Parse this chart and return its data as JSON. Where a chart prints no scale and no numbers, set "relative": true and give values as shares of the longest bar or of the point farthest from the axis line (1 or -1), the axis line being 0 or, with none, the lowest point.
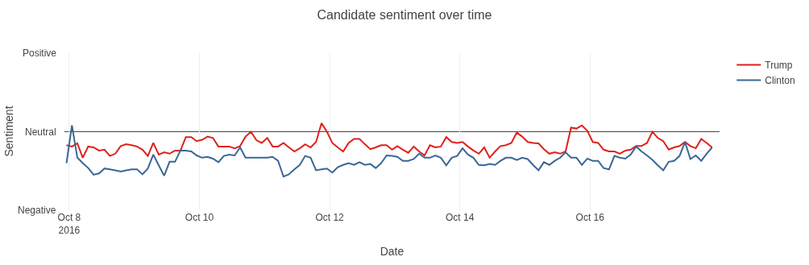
{
  "chart_data": {
    "type": "line",
    "title": "Candidate sentiment over time",
    "xlabel": "Date",
    "ylabel": "Sentiment",
    "x": [
      "2016-10-07T23:00",
      "2016-10-08T01:00",
      "2016-10-08T03:00",
      "2016-10-08T05:00",
      "2016-10-08T07:00",
      "2016-10-08T09:00",
      "2016-10-08T11:00",
      "2016-10-08T13:00",
      "2016-10-08T15:00",
      "2016-10-08T17:00",
      "2016-10-08T19:00",
      "2016-10-08T21:00",
      "2016-10-08T23:00",
      "2016-10-09T01:00",
      "2016-10-09T03:00",
      "2016-10-09T05:00",
      "2016-10-09T07:00",
      "2016-10-09T09:00",
      "2016-10-09T11:00",
      "2016-10-09T13:00",
      "2016-10-09T15:00",
      "2016-10-09T17:00",
      "2016-10-09T19:00",
      "2016-10-09T21:00",
      "2016-10-09T23:00",
      "2016-10-10T01:00",
      "2016-10-10T03:00",
      "2016-10-10T05:00",
      "2016-10-10T07:00",
      "2016-10-10T09:00",
      "2016-10-10T11:00",
      "2016-10-10T13:00",
      "2016-10-10T15:00",
      "2016-10-10T17:00",
      "2016-10-10T19:00",
      "2016-10-10T21:00",
      "2016-10-10T23:00",
      "2016-10-11T01:00",
      "2016-10-11T03:00",
      "2016-10-11T05:00",
      "2016-10-11T07:00",
      "2016-10-11T09:00",
      "2016-10-11T11:00",
      "2016-10-11T13:00",
      "2016-10-11T15:00",
      "2016-10-11T17:00",
      "2016-10-11T19:00",
      "2016-10-11T21:00",
      "2016-10-11T23:00",
      "2016-10-12T01:00",
      "2016-10-12T03:00",
      "2016-10-12T05:00",
      "2016-10-12T07:00",
      "2016-10-12T09:00",
      "2016-10-12T11:00",
      "2016-10-12T13:00",
      "2016-10-12T15:00",
      "2016-10-12T17:00",
      "2016-10-12T19:00",
      "2016-10-12T21:00",
      "2016-10-12T23:00",
      "2016-10-13T01:00",
      "2016-10-13T03:00",
      "2016-10-13T05:00",
      "2016-10-13T07:00",
      "2016-10-13T09:00",
      "2016-10-13T11:00",
      "2016-10-13T13:00",
      "2016-10-13T15:00",
      "2016-10-13T17:00",
      "2016-10-13T19:00",
      "2016-10-13T21:00",
      "2016-10-13T23:00",
      "2016-10-14T01:00",
      "2016-10-14T03:00",
      "2016-10-14T05:00",
      "2016-10-14T07:00",
      "2016-10-14T09:00",
      "2016-10-14T11:00",
      "2016-10-14T13:00",
      "2016-10-14T15:00",
      "2016-10-14T17:00",
      "2016-10-14T19:00",
      "2016-10-14T21:00",
      "2016-10-14T23:00",
      "2016-10-15T01:00",
      "2016-10-15T03:00",
      "2016-10-15T05:00",
      "2016-10-15T07:00",
      "2016-10-15T09:00",
      "2016-10-15T11:00",
      "2016-10-15T13:00",
      "2016-10-15T15:00",
      "2016-10-15T17:00",
      "2016-10-15T19:00",
      "2016-10-15T21:00",
      "2016-10-15T23:00",
      "2016-10-16T01:00",
      "2016-10-16T03:00",
      "2016-10-16T05:00",
      "2016-10-16T07:00",
      "2016-10-16T09:00",
      "2016-10-16T11:00",
      "2016-10-16T13:00",
      "2016-10-16T15:00",
      "2016-10-16T17:00",
      "2016-10-16T19:00",
      "2016-10-16T21:00",
      "2016-10-16T23:00",
      "2016-10-17T01:00",
      "2016-10-17T03:00",
      "2016-10-17T05:00",
      "2016-10-17T07:00",
      "2016-10-17T09:00",
      "2016-10-17T11:00",
      "2016-10-17T13:00",
      "2016-10-17T15:00",
      "2016-10-17T17:00",
      "2016-10-17T19:00",
      "2016-10-17T21:00"
    ],
    "series": [
      {
        "name": "Trump",
        "color": "#e0201b",
        "values": [
          -0.3,
          -0.33,
          -0.26,
          -0.58,
          -0.33,
          -0.35,
          -0.42,
          -0.4,
          -0.54,
          -0.49,
          -0.32,
          -0.28,
          -0.3,
          -0.33,
          -0.4,
          -0.54,
          -0.25,
          -0.51,
          -0.46,
          -0.49,
          -0.42,
          -0.42,
          -0.12,
          -0.12,
          -0.21,
          -0.18,
          -0.11,
          -0.14,
          -0.33,
          -0.33,
          -0.33,
          -0.37,
          -0.32,
          -0.11,
          0,
          -0.19,
          -0.25,
          -0.14,
          -0.33,
          -0.33,
          -0.25,
          -0.35,
          -0.44,
          -0.37,
          -0.28,
          -0.35,
          -0.23,
          0.19,
          0,
          -0.25,
          -0.35,
          -0.44,
          -0.25,
          -0.16,
          -0.16,
          -0.28,
          -0.39,
          -0.35,
          -0.3,
          -0.3,
          -0.4,
          -0.32,
          -0.4,
          -0.47,
          -0.33,
          -0.44,
          -0.53,
          -0.3,
          -0.35,
          -0.33,
          -0.12,
          -0.23,
          -0.25,
          -0.23,
          -0.33,
          -0.42,
          -0.49,
          -0.35,
          -0.58,
          -0.44,
          -0.32,
          -0.3,
          -0.25,
          -0.02,
          -0.11,
          -0.23,
          -0.25,
          -0.26,
          -0.39,
          -0.49,
          -0.46,
          -0.49,
          -0.44,
          0.09,
          0.07,
          0.14,
          0.02,
          -0.23,
          -0.25,
          -0.4,
          -0.44,
          -0.44,
          -0.49,
          -0.42,
          -0.4,
          -0.32,
          -0.32,
          -0.25,
          0,
          -0.14,
          -0.21,
          -0.4,
          -0.35,
          -0.32,
          -0.23,
          -0.32,
          -0.37,
          -0.16,
          -0.25,
          -0.35
        ]
      },
      {
        "name": "Clinton",
        "color": "#3a6795",
        "values": [
          -0.7,
          0.14,
          -0.58,
          -0.7,
          -0.81,
          -0.96,
          -0.93,
          -0.82,
          -0.84,
          -0.86,
          -0.89,
          -0.86,
          -0.84,
          -0.84,
          -0.95,
          -0.82,
          -0.51,
          -0.75,
          -0.98,
          -0.67,
          -0.67,
          -0.42,
          -0.42,
          -0.44,
          -0.53,
          -0.58,
          -0.56,
          -0.6,
          -0.68,
          -0.54,
          -0.51,
          -0.53,
          -0.35,
          -0.58,
          -0.58,
          -0.58,
          -0.58,
          -0.58,
          -0.56,
          -0.65,
          -1,
          -0.95,
          -0.84,
          -0.74,
          -0.54,
          -0.58,
          -0.86,
          -0.84,
          -0.82,
          -0.91,
          -0.79,
          -0.74,
          -0.7,
          -0.74,
          -0.68,
          -0.74,
          -0.72,
          -0.81,
          -0.7,
          -0.53,
          -0.54,
          -0.56,
          -0.65,
          -0.65,
          -0.61,
          -0.49,
          -0.58,
          -0.58,
          -0.53,
          -0.58,
          -0.75,
          -0.58,
          -0.54,
          -0.37,
          -0.51,
          -0.58,
          -0.74,
          -0.75,
          -0.72,
          -0.74,
          -0.65,
          -0.58,
          -0.58,
          -0.63,
          -0.58,
          -0.61,
          -0.74,
          -0.86,
          -0.68,
          -0.74,
          -0.65,
          -0.58,
          -0.46,
          -0.58,
          -0.58,
          -0.74,
          -0.6,
          -0.65,
          -0.65,
          -0.81,
          -0.84,
          -0.54,
          -0.58,
          -0.6,
          -0.51,
          -0.33,
          -0.44,
          -0.53,
          -0.63,
          -0.75,
          -0.86,
          -0.67,
          -0.65,
          -0.54,
          -0.23,
          -0.61,
          -0.53,
          -0.65,
          -0.49,
          -0.35
        ]
      }
    ],
    "xlim": [
      "2016-10-07T22:15",
      "2016-10-17T23:45"
    ],
    "xticks": [
      {
        "value": "2016-10-08",
        "label": "Oct 8\n2016"
      },
      {
        "value": "2016-10-10",
        "label": "Oct 10"
      },
      {
        "value": "2016-10-12",
        "label": "Oct 12"
      },
      {
        "value": "2016-10-14",
        "label": "Oct 14"
      },
      {
        "value": "2016-10-16",
        "label": "Oct 16"
      }
    ],
    "relative": true,
    "ylim": [
      -1.75,
      1.75
    ],
    "annotations": [
      "Positive",
      "Negative"
    ],
    "ref_lines": [
      {
        "axis": "y",
        "value": 0,
        "color": "#444444",
        "label": "Neutral"
      }
    ],
    "grid": "x",
    "legend": "top right",
    "marker": "none",
    "line_style": "solid"
  }
}
